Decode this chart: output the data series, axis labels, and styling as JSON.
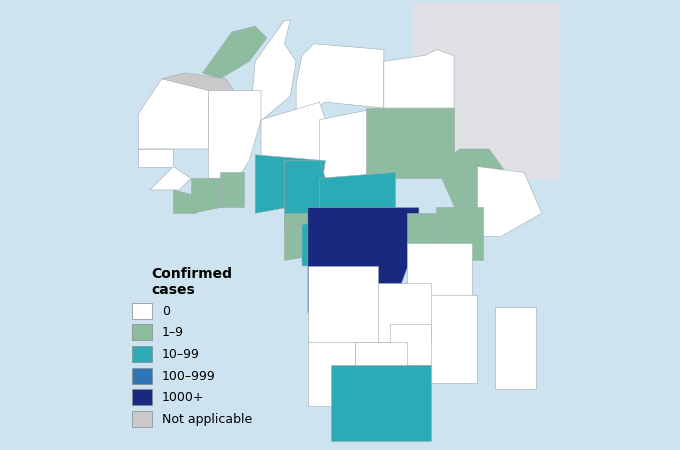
{
  "background_color": "#cde4f0",
  "ocean_color": "#cde4f0",
  "legend_title": "Confirmed\ncases",
  "legend_items": [
    {
      "label": "0",
      "color": "#ffffff"
    },
    {
      "label": "1–9",
      "color": "#8dbc9e"
    },
    {
      "label": "10–99",
      "color": "#2aabb5"
    },
    {
      "label": "100–999",
      "color": "#2e75b6"
    },
    {
      "label": "1000+",
      "color": "#1a2980"
    },
    {
      "label": "Not applicable",
      "color": "#c9c9c9"
    }
  ],
  "country_cases": {
    "Dem. Rep. Congo": "1000+",
    "Congo": "10-99",
    "Central African Rep.": "10-99",
    "Cameroon": "10-99",
    "Nigeria": "10-99",
    "Gabon": "1-9",
    "Eq. Guinea": "1-9",
    "Uganda": "1-9",
    "Kenya": "1-9",
    "Rwanda": "1-9",
    "Burundi": "1-9",
    "Morocco": "1-9",
    "Ivory Coast": "1-9",
    "South Africa": "10-99",
    "Sudan": "1-9",
    "Ghana": "1-9",
    "Liberia": "1-9",
    "Ethiopia": "1-9",
    "W. Sahara": "not_applicable"
  },
  "color_map": {
    "0": "#ffffff",
    "1-9": "#8dbc9e",
    "10-99": "#2aabb5",
    "100-999": "#2e75b6",
    "1000+": "#1a2980",
    "not_applicable": "#c9c9c9"
  },
  "africa_default_color": "#ffffff",
  "non_africa_color": "#e0e0e5",
  "border_color": "#a0aab0",
  "border_width": 0.4,
  "figsize": [
    6.8,
    4.5
  ],
  "dpi": 100,
  "xlim": [
    -20,
    55
  ],
  "ylim": [
    -36,
    40
  ]
}
